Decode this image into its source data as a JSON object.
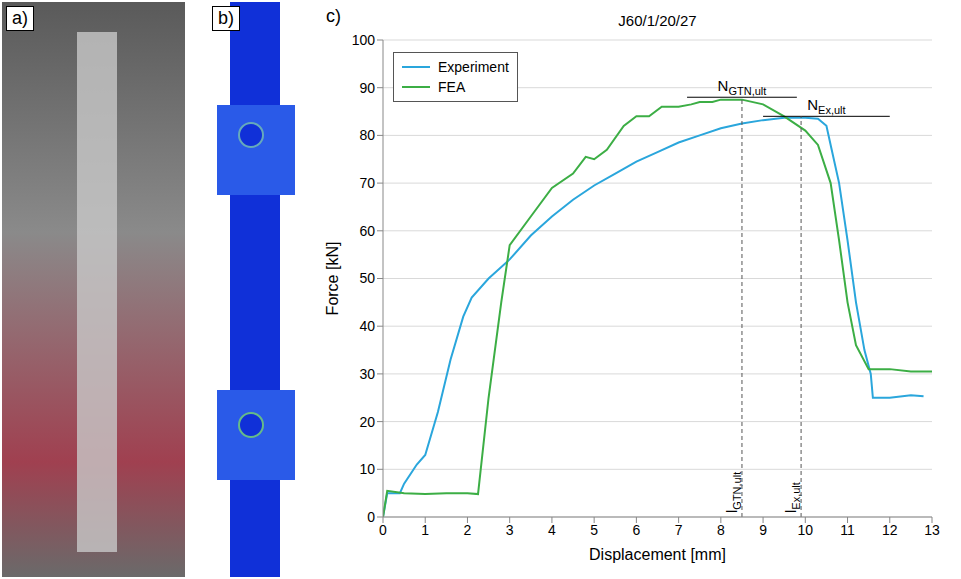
{
  "panels": [
    "a)",
    "b)",
    "c)"
  ],
  "chart_data": {
    "type": "line",
    "title": "J60/1/20/27",
    "x_label": "Displacement [mm]",
    "y_label": "Force [kN]",
    "xlim": [
      0,
      13
    ],
    "xticks": [
      0,
      1,
      2,
      3,
      4,
      5,
      6,
      7,
      8,
      9,
      10,
      11,
      12,
      13
    ],
    "ylim": [
      0,
      100
    ],
    "yticks": [
      0,
      10,
      20,
      30,
      40,
      50,
      60,
      70,
      80,
      90,
      100
    ],
    "grid": true,
    "legend": "top-left",
    "series": [
      {
        "name": "Experiment",
        "color": "#2aa6dc",
        "x": [
          0,
          0.1,
          0.4,
          0.5,
          0.8,
          1.0,
          1.3,
          1.6,
          1.9,
          2.1,
          2.5,
          3,
          3.5,
          4,
          4.5,
          5,
          5.5,
          6,
          6.5,
          7,
          7.5,
          8,
          8.5,
          9,
          9.5,
          10,
          10.3,
          10.5,
          10.6,
          10.8,
          11,
          11.2,
          11.4,
          11.55,
          11.6,
          12,
          12.5,
          12.8
        ],
        "values": [
          0,
          5,
          5,
          7,
          11,
          13,
          22,
          33,
          42,
          46,
          50,
          54,
          59,
          63,
          66.5,
          69.5,
          72,
          74.5,
          76.5,
          78.5,
          80,
          81.5,
          82.5,
          83.2,
          83.7,
          83.7,
          83.5,
          82,
          78,
          70,
          58,
          45,
          35,
          30,
          25,
          25,
          25.5,
          25.3
        ]
      },
      {
        "name": "FEA",
        "color": "#3cae45",
        "x": [
          0,
          0.1,
          0.5,
          1,
          1.5,
          2,
          2.25,
          2.5,
          2.8,
          3,
          3.5,
          4,
          4.5,
          4.8,
          5,
          5.3,
          5.7,
          6,
          6.3,
          6.6,
          7,
          7.3,
          7.5,
          7.8,
          8,
          8.5,
          9,
          9.5,
          10,
          10.3,
          10.6,
          10.8,
          11,
          11.2,
          11.5,
          12,
          12.5,
          13
        ],
        "values": [
          0,
          5.5,
          5,
          4.8,
          5,
          5,
          4.8,
          25,
          45,
          57,
          63,
          69,
          72,
          75.5,
          75,
          77,
          82,
          84,
          84,
          86,
          86,
          86.5,
          87,
          87,
          87.5,
          87.5,
          86.5,
          84,
          81,
          78,
          70,
          58,
          45,
          36,
          31,
          31,
          30.5,
          30.5
        ]
      }
    ],
    "annotations": [
      {
        "text": "N",
        "sub": "GTN,ult",
        "x": [
          7.2,
          9.8
        ],
        "y": 88
      },
      {
        "text": "N",
        "sub": "Ex,ult",
        "x": [
          9.0,
          12.0
        ],
        "y": 84
      },
      {
        "text": "l",
        "sub": "GTN,ult",
        "x": 8.5,
        "y": [
          0,
          88
        ]
      },
      {
        "text": "l",
        "sub": "Ex,ult",
        "x": 9.9,
        "y": [
          0,
          84
        ]
      }
    ]
  }
}
